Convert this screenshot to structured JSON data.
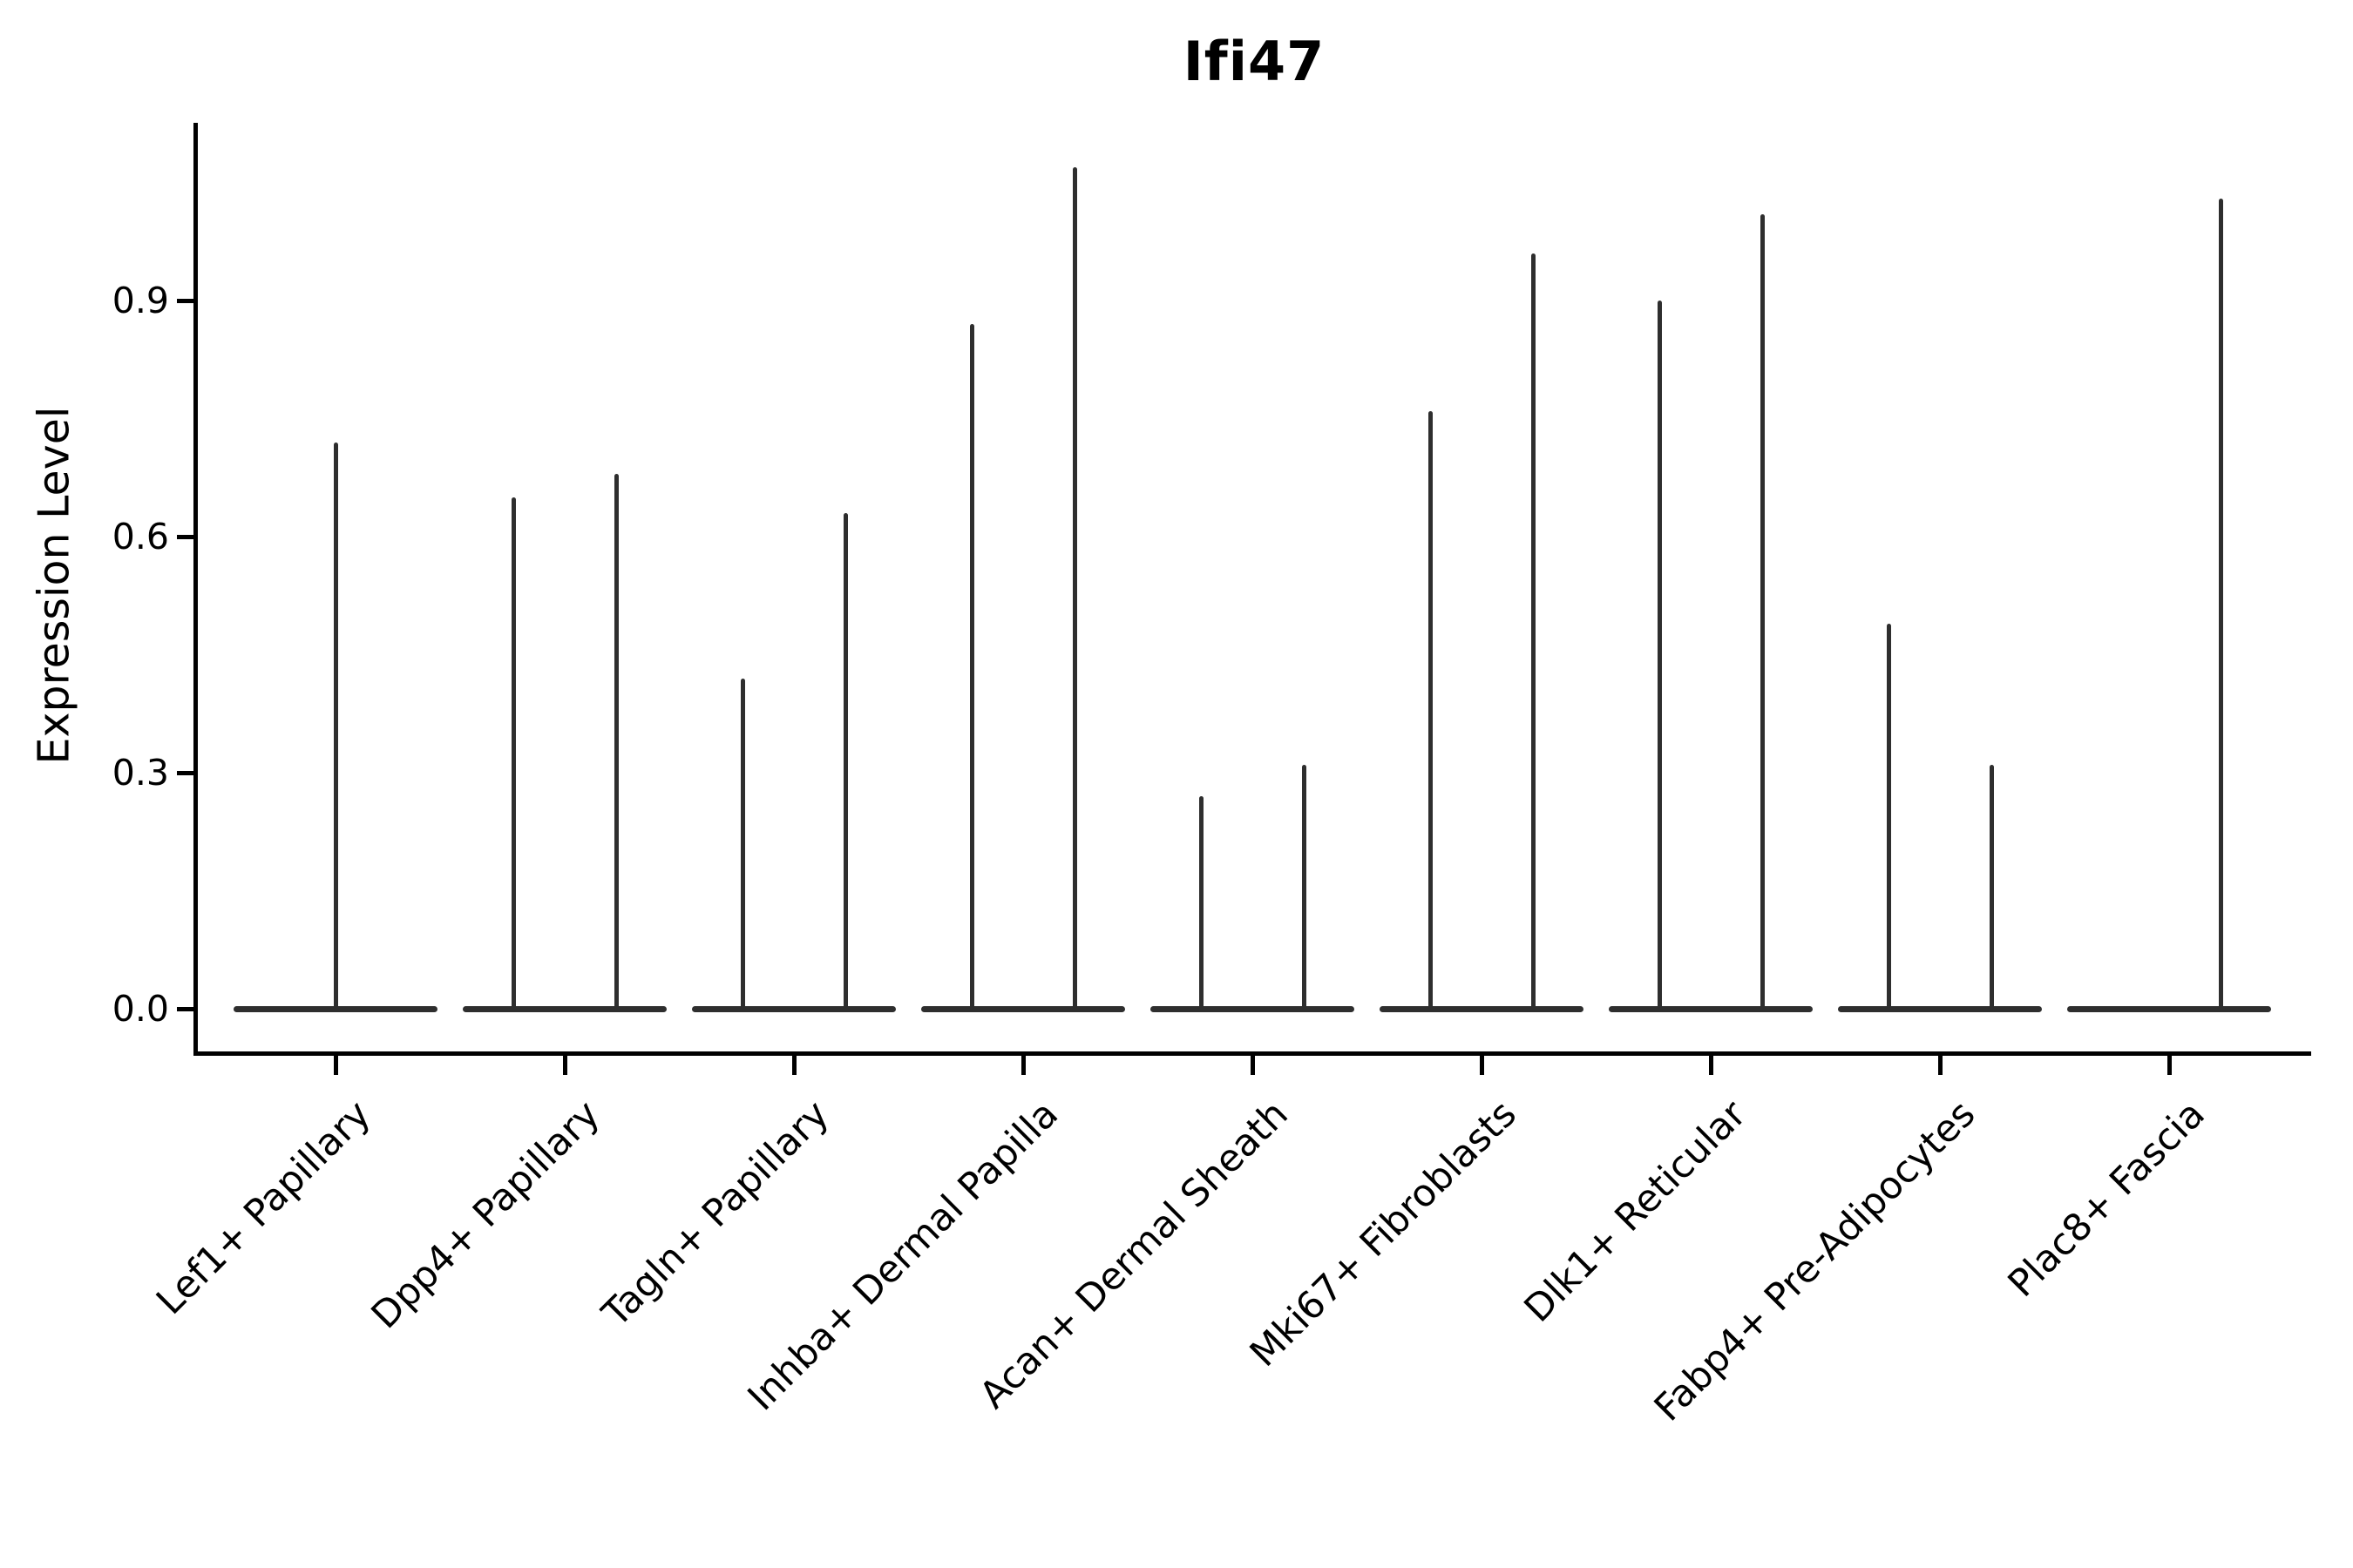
{
  "figure": {
    "title": "Ifi47",
    "background_color": "#ffffff",
    "axis_color": "#000000",
    "violin_color": "#2e2e2e",
    "text_color": "#000000"
  },
  "chart_data": {
    "type": "violin",
    "title": "Ifi47",
    "xlabel": "",
    "ylabel": "Expression Level",
    "ylim": [
      0,
      1.16
    ],
    "yticks": [
      0.0,
      0.3,
      0.6,
      0.9
    ],
    "ytick_labels": [
      "0.0",
      "0.3",
      "0.6",
      "0.9"
    ],
    "grid": false,
    "legend_position": "none",
    "note": "Each category shows a width-collapsed violin: a flat body line at expression 0 plus one or two thin density spikes reaching the maximum expression value",
    "categories": [
      "Lef1+ Papillary",
      "Dpp4+ Papillary",
      "Tagln+ Papillary",
      "Inhba+ Dermal Papilla",
      "Acan+ Dermal Sheath",
      "Mki67+ Fibroblasts",
      "Dlk1+ Reticular",
      "Fabp4+ Pre-Adipocytes",
      "Plac8+ Fascia"
    ],
    "violins": [
      {
        "category": "Lef1+ Papillary",
        "spikes": [
          {
            "position": "center",
            "peak_value": 0.72
          }
        ]
      },
      {
        "category": "Dpp4+ Papillary",
        "spikes": [
          {
            "position": "left",
            "peak_value": 0.65
          },
          {
            "position": "right",
            "peak_value": 0.68
          }
        ]
      },
      {
        "category": "Tagln+ Papillary",
        "spikes": [
          {
            "position": "left",
            "peak_value": 0.42
          },
          {
            "position": "right",
            "peak_value": 0.63
          }
        ]
      },
      {
        "category": "Inhba+ Dermal Papilla",
        "spikes": [
          {
            "position": "left",
            "peak_value": 0.87
          },
          {
            "position": "right",
            "peak_value": 1.07
          }
        ]
      },
      {
        "category": "Acan+ Dermal Sheath",
        "spikes": [
          {
            "position": "left",
            "peak_value": 0.27
          },
          {
            "position": "right",
            "peak_value": 0.31
          }
        ]
      },
      {
        "category": "Mki67+ Fibroblasts",
        "spikes": [
          {
            "position": "left",
            "peak_value": 0.76
          },
          {
            "position": "right",
            "peak_value": 0.96
          }
        ]
      },
      {
        "category": "Dlk1+ Reticular",
        "spikes": [
          {
            "position": "left",
            "peak_value": 0.9
          },
          {
            "position": "right",
            "peak_value": 1.01
          }
        ]
      },
      {
        "category": "Fabp4+ Pre-Adipocytes",
        "spikes": [
          {
            "position": "left",
            "peak_value": 0.49
          },
          {
            "position": "right",
            "peak_value": 0.31
          }
        ]
      },
      {
        "category": "Plac8+ Fascia",
        "spikes": [
          {
            "position": "right",
            "peak_value": 1.03
          }
        ]
      }
    ]
  }
}
